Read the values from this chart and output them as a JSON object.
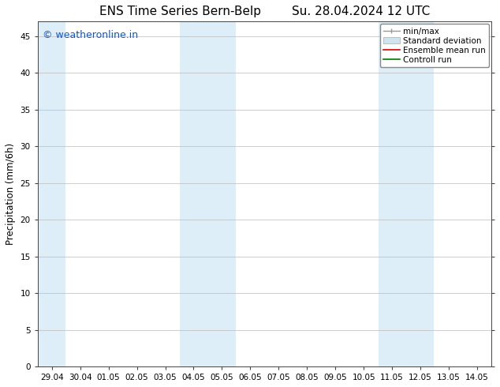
{
  "title": "ENS Time Series Bern-Belp        Su. 28.04.2024 12 UTC",
  "ylabel": "Precipitation (mm/6h)",
  "x_tick_labels": [
    "29.04",
    "30.04",
    "01.05",
    "02.05",
    "03.05",
    "04.05",
    "05.05",
    "06.05",
    "07.05",
    "08.05",
    "09.05",
    "10.05",
    "11.05",
    "12.05",
    "13.05",
    "14.05"
  ],
  "x_tick_positions": [
    0,
    1,
    2,
    3,
    4,
    5,
    6,
    7,
    8,
    9,
    10,
    11,
    12,
    13,
    14,
    15
  ],
  "xlim": [
    -0.5,
    15.5
  ],
  "ylim": [
    0,
    47
  ],
  "yticks": [
    0,
    5,
    10,
    15,
    20,
    25,
    30,
    35,
    40,
    45
  ],
  "background_color": "#ffffff",
  "shaded_regions": [
    {
      "x_start": -0.5,
      "x_end": 0.48,
      "color": "#ddeef8"
    },
    {
      "x_start": 4.52,
      "x_end": 6.48,
      "color": "#ddeef8"
    },
    {
      "x_start": 11.52,
      "x_end": 13.48,
      "color": "#ddeef8"
    }
  ],
  "watermark_text": "© weatheronline.in",
  "watermark_color": "#1155cc",
  "watermark_fontsize": 9,
  "title_fontsize": 11,
  "tick_fontsize": 7.5,
  "ylabel_fontsize": 8.5,
  "grid_color": "#bbbbbb",
  "grid_lw": 0.5,
  "spine_color": "#444444",
  "legend_fontsize": 7.5
}
